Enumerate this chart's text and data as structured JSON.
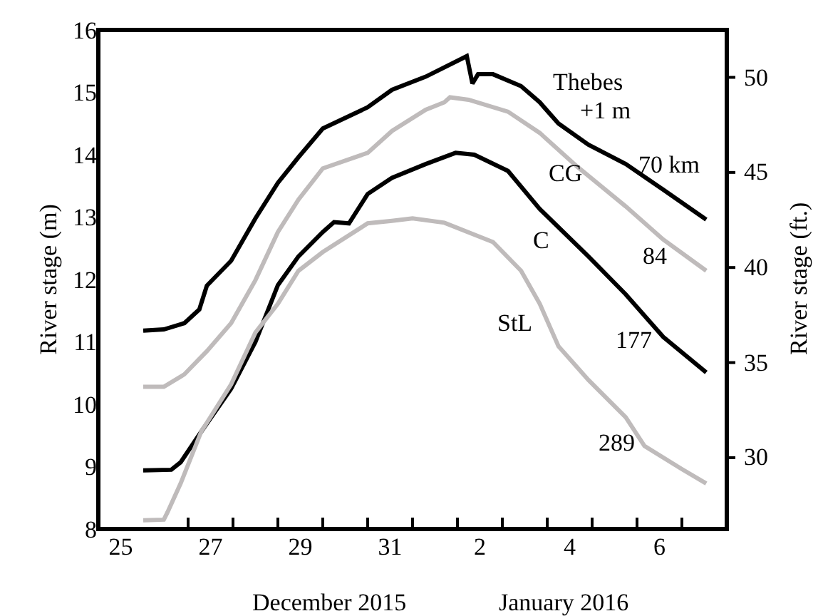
{
  "chart_data": {
    "type": "line",
    "xlabel": "December 2015",
    "ylabel": "River stage (m)",
    "y2label": "River stage (ft.)",
    "xlim": [
      "2015-12-25T00:00",
      "2016-01-08T00:00"
    ],
    "xticks": [
      {
        "value": "2015-12-25T12:00",
        "label": "25"
      },
      {
        "value": "2015-12-27T12:00",
        "label": "27"
      },
      {
        "value": "2015-12-29T12:00",
        "label": "29"
      },
      {
        "value": "2015-12-31T12:00",
        "label": "31"
      },
      {
        "value": "2016-01-02T12:00",
        "label": "2"
      },
      {
        "value": "2016-01-04T12:00",
        "label": "4"
      },
      {
        "value": "2016-01-06T12:00",
        "label": "6"
      },
      {
        "value": "2015-12-27T00:00",
        "label": null
      },
      {
        "value": "2015-12-28T00:00",
        "label": null
      },
      {
        "value": "2015-12-29T00:00",
        "label": null
      },
      {
        "value": "2015-12-30T00:00",
        "label": null
      },
      {
        "value": "2015-12-31T00:00",
        "label": null
      },
      {
        "value": "2016-01-01T00:00",
        "label": null
      },
      {
        "value": "2016-01-02T00:00",
        "label": null
      },
      {
        "value": "2016-01-03T00:00",
        "label": null
      },
      {
        "value": "2016-01-04T00:00",
        "label": null
      },
      {
        "value": "2016-01-05T00:00",
        "label": null
      },
      {
        "value": "2016-01-06T00:00",
        "label": null
      },
      {
        "value": "2016-01-07T00:00",
        "label": null
      }
    ],
    "ylim": [
      8,
      16
    ],
    "yticks": [
      8,
      9,
      10,
      11,
      12,
      13,
      14,
      15,
      16
    ],
    "y2lim": [
      26.247,
      52.493
    ],
    "y2ticks": [
      30,
      35,
      40,
      45,
      50
    ],
    "grid": false,
    "legend": false,
    "marker": "none",
    "line_style": "solid",
    "series": [
      {
        "name": "Thebes",
        "color": "#000000",
        "x": [
          "2015-12-26T00:00",
          "2015-12-26T11:00",
          "2015-12-26T22:00",
          "2015-12-27T06:00",
          "2015-12-27T10:00",
          "2015-12-27T23:00",
          "2015-12-28T12:00",
          "2015-12-29T00:00",
          "2015-12-29T11:00",
          "2015-12-30T00:00",
          "2015-12-31T00:00",
          "2015-12-31T13:00",
          "2016-01-01T07:00",
          "2016-01-02T05:00",
          "2016-01-02T08:00",
          "2016-01-02T11:00",
          "2016-01-02T19:00",
          "2016-01-03T10:00",
          "2016-01-03T20:00",
          "2016-01-04T06:00",
          "2016-01-04T22:00",
          "2016-01-05T18:00",
          "2016-01-06T14:00",
          "2016-01-07T13:00"
        ],
        "values": [
          11.18,
          11.2,
          11.3,
          11.52,
          11.9,
          12.3,
          12.98,
          13.55,
          13.96,
          14.42,
          14.76,
          15.04,
          15.25,
          15.58,
          15.14,
          15.29,
          15.29,
          15.1,
          14.84,
          14.5,
          14.16,
          13.85,
          13.44,
          12.96
        ]
      },
      {
        "name": "CG",
        "color": "#bfbbbb",
        "x": [
          "2015-12-26T00:00",
          "2015-12-26T11:00",
          "2015-12-26T22:00",
          "2015-12-27T10:00",
          "2015-12-27T23:00",
          "2015-12-28T12:00",
          "2015-12-29T00:00",
          "2015-12-29T11:00",
          "2015-12-30T00:00",
          "2015-12-31T00:00",
          "2015-12-31T13:00",
          "2016-01-01T07:00",
          "2016-01-01T17:00",
          "2016-01-01T20:00",
          "2016-01-02T06:00",
          "2016-01-03T03:00",
          "2016-01-03T20:00",
          "2016-01-04T16:00",
          "2016-01-05T18:00",
          "2016-01-06T14:00",
          "2016-01-07T13:00"
        ],
        "values": [
          10.28,
          10.28,
          10.48,
          10.85,
          11.3,
          11.99,
          12.76,
          13.28,
          13.78,
          14.03,
          14.38,
          14.72,
          14.84,
          14.92,
          14.88,
          14.69,
          14.35,
          13.81,
          13.17,
          12.64,
          12.14
        ]
      },
      {
        "name": "C",
        "color": "#000000",
        "x": [
          "2015-12-26T00:00",
          "2015-12-26T15:00",
          "2015-12-26T20:00",
          "2015-12-27T07:00",
          "2015-12-27T23:00",
          "2015-12-28T12:00",
          "2015-12-29T00:00",
          "2015-12-29T11:00",
          "2015-12-30T00:00",
          "2015-12-30T06:00",
          "2015-12-30T14:00",
          "2015-12-31T00:00",
          "2015-12-31T13:00",
          "2016-01-01T07:00",
          "2016-01-01T23:00",
          "2016-01-02T09:00",
          "2016-01-03T03:00",
          "2016-01-03T20:00",
          "2016-01-04T22:00",
          "2016-01-05T18:00",
          "2016-01-06T14:00",
          "2016-01-07T13:00"
        ],
        "values": [
          8.94,
          8.95,
          9.07,
          9.56,
          10.25,
          11.0,
          11.91,
          12.37,
          12.76,
          12.92,
          12.9,
          13.37,
          13.63,
          13.85,
          14.03,
          14.0,
          13.74,
          13.13,
          12.37,
          11.76,
          11.08,
          10.51
        ]
      },
      {
        "name": "StL",
        "color": "#bfbbbb",
        "x": [
          "2015-12-26T00:00",
          "2015-12-26T11:00",
          "2015-12-26T13:00",
          "2015-12-26T20:00",
          "2015-12-27T07:00",
          "2015-12-27T23:00",
          "2015-12-28T12:00",
          "2015-12-29T00:00",
          "2015-12-29T11:00",
          "2015-12-30T00:00",
          "2015-12-31T00:00",
          "2015-12-31T13:00",
          "2016-01-01T00:00",
          "2016-01-01T17:00",
          "2016-01-02T19:00",
          "2016-01-03T10:00",
          "2016-01-03T20:00",
          "2016-01-04T06:00",
          "2016-01-04T22:00",
          "2016-01-05T18:00",
          "2016-01-06T04:00",
          "2016-01-07T00:00",
          "2016-01-07T13:00"
        ],
        "values": [
          8.14,
          8.15,
          8.27,
          8.73,
          9.56,
          10.32,
          11.15,
          11.61,
          12.14,
          12.44,
          12.9,
          12.94,
          12.98,
          12.91,
          12.6,
          12.14,
          11.61,
          10.93,
          10.39,
          9.79,
          9.33,
          8.96,
          8.73
        ]
      }
    ],
    "annotations": [
      "January 2016",
      "+1 m",
      "70 km",
      "84",
      "177",
      "289"
    ]
  }
}
